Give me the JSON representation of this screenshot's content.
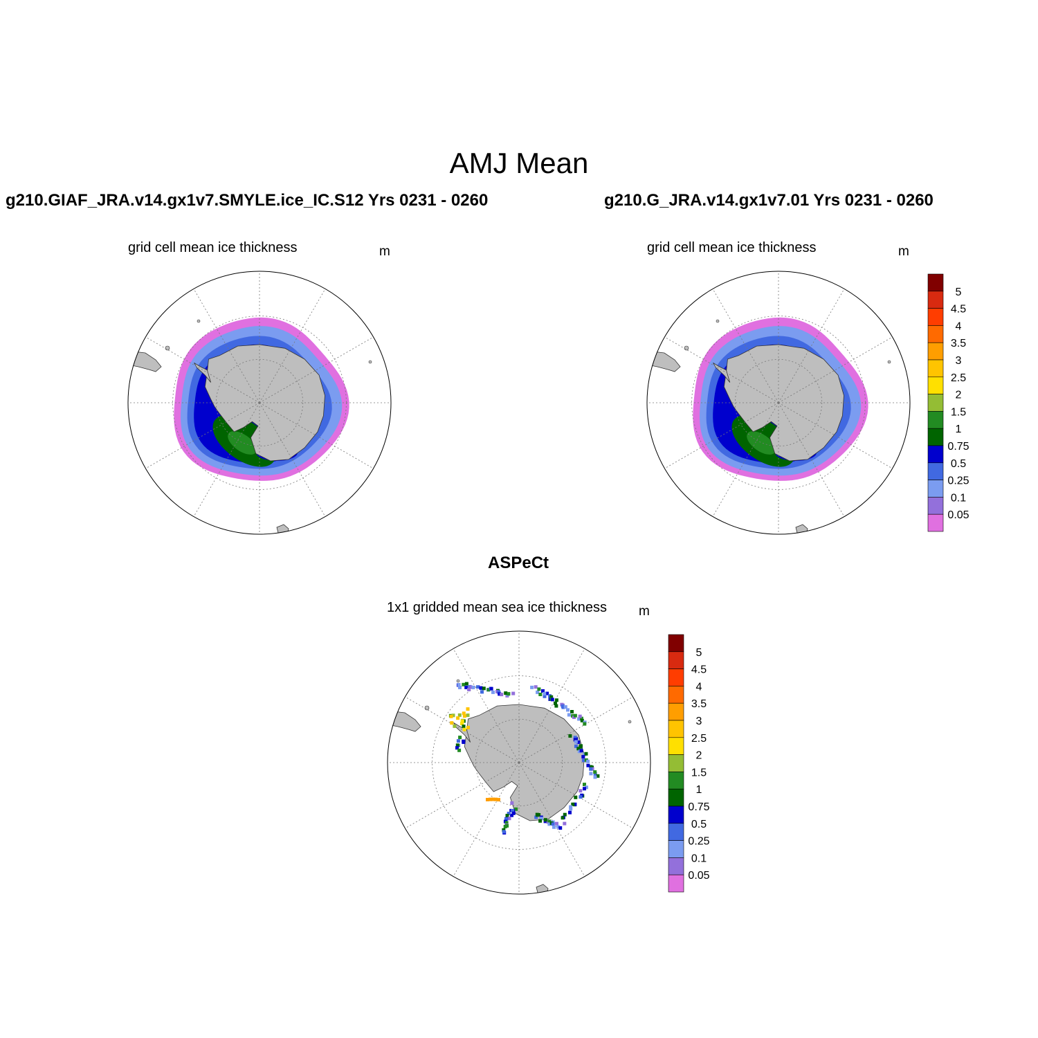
{
  "figure": {
    "title": "AMJ Mean"
  },
  "panels": [
    {
      "run_title": "g210.GIAF_JRA.v14.gx1v7.SMYLE.ice_IC.S12  Yrs 0231 - 0260",
      "subtitle": "grid cell mean ice thickness",
      "units": "m"
    },
    {
      "run_title": "g210.G_JRA.v14.gx1v7.01  Yrs 0231 - 0260",
      "subtitle": "grid cell mean ice thickness",
      "units": "m"
    },
    {
      "run_title": "ASPeCt",
      "subtitle": "1x1 gridded mean sea ice thickness",
      "units": "m"
    }
  ],
  "colorbar": {
    "labels": [
      "5",
      "4.5",
      "4",
      "3.5",
      "3",
      "2.5",
      "2",
      "1.5",
      "1",
      "0.75",
      "0.5",
      "0.25",
      "0.1",
      "0.05"
    ],
    "colors": [
      "#800000",
      "#d82a10",
      "#ff3d00",
      "#ff6a00",
      "#ff9e00",
      "#ffc400",
      "#ffe000",
      "#94bd34",
      "#228b22",
      "#006400",
      "#0000cd",
      "#4169e1",
      "#7b9cf0",
      "#9370db",
      "#e070e0"
    ]
  },
  "map_style": {
    "land": "#bebebe",
    "ocean": "#ffffff",
    "grid": "#777777"
  }
}
